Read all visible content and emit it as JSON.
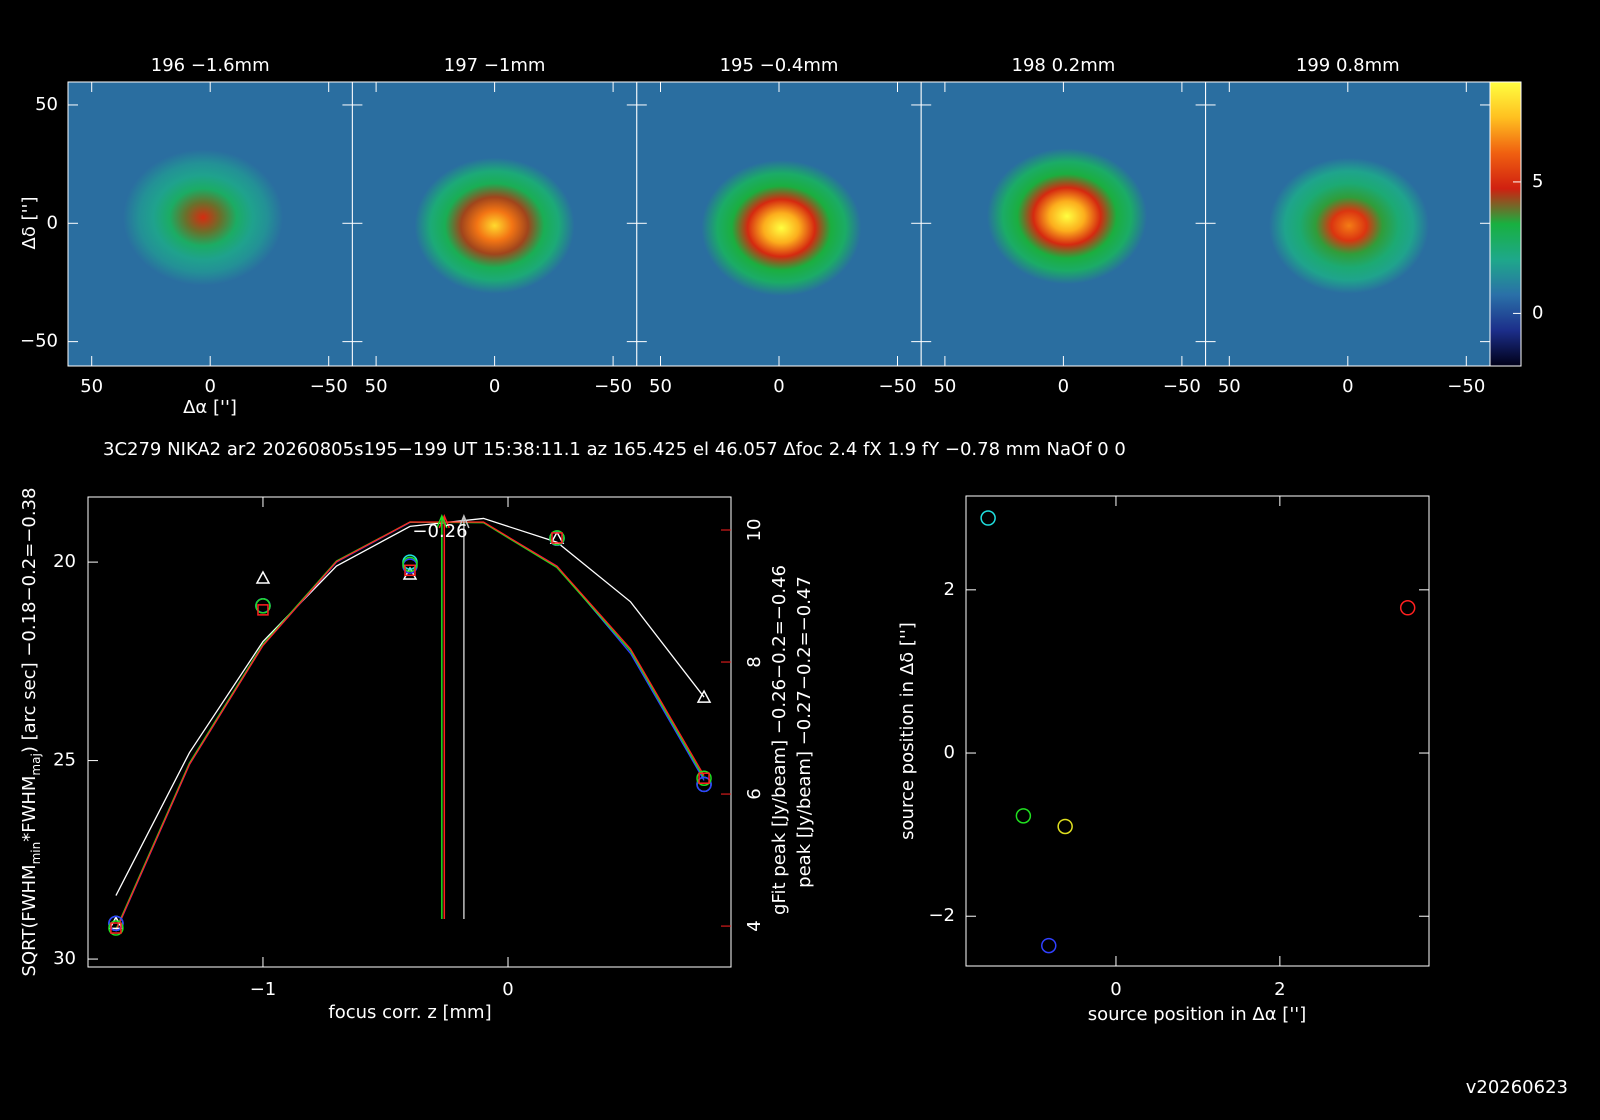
{
  "header": "3C279 NIKA2 ar2 20260805s195−199 UT 15:38:11.1 az 165.425 el 46.057 Δfoc 2.4 fX 1.9 fY −0.78 mm NaOf 0 0",
  "version": "v20260623",
  "chart_data": [
    {
      "type": "image",
      "xlabel": "Δα ['']",
      "ylabel": "Δδ ['']",
      "xlim": [
        60,
        -60
      ],
      "ylim": [
        -60.3,
        59.7
      ],
      "xticks": [
        50,
        0,
        {
          "value": -50,
          "label": "−50"
        }
      ],
      "yticks": [
        {
          "value": -50,
          "label": "−50"
        },
        0,
        50
      ],
      "colorbar": {
        "clim": [
          -2,
          8.8
        ],
        "ticks": [
          0,
          5
        ],
        "colormap": [
          "#000018",
          "#1c2e8a",
          "#2a70a8",
          "#1ea88a",
          "#18b040",
          "#d02010",
          "#f06010",
          "#ffc020",
          "#ffff40"
        ]
      },
      "panels": [
        {
          "title": "196 −1.6mm",
          "peak": 5,
          "x": 3,
          "y": 2.5
        },
        {
          "title": "197 −1mm",
          "peak": 8,
          "x": 0,
          "y": -1
        },
        {
          "title": "195 −0.4mm",
          "peak": 9,
          "x": -1,
          "y": -2
        },
        {
          "title": "198 0.2mm",
          "peak": 9,
          "x": -1.5,
          "y": 3
        },
        {
          "title": "199 0.8mm",
          "peak": 6.5,
          "x": -0.5,
          "y": -1
        }
      ]
    },
    {
      "type": "line",
      "xlabel": "focus corr. z [mm]",
      "ylabel": [
        "SQRT(FWHM",
        "min",
        "*FWHM",
        "maj",
        ") [arc sec] −0.18−0.2=−0.38"
      ],
      "y2label": "gFit peak [Jy/beam] −0.26−0.2=−0.46",
      "y3label": "peak [Jy/beam] −0.27−0.2=−0.47",
      "y2color": "#ff2020",
      "y3color": "#20e020",
      "xlim": [
        -1.714,
        0.91
      ],
      "ylim": [
        30.2,
        18.36
      ],
      "y2lim": [
        3.38,
        10.5
      ],
      "xticks": [
        {
          "value": -1,
          "label": "−1"
        },
        0
      ],
      "yticks": [
        20,
        25,
        30
      ],
      "y2ticks": [
        4,
        6,
        8,
        10
      ],
      "x": [
        -1.6,
        -1,
        -0.4,
        0.2,
        0.8
      ],
      "series": [
        {
          "color": "#ffffff",
          "marker": "triangle",
          "values": [
            29.1,
            20.4,
            20.3,
            19.4,
            23.4
          ]
        },
        {
          "color": "#20e0e0",
          "marker": "circle",
          "values": [
            29.1,
            21.1,
            20.0,
            19.4,
            25.6
          ]
        },
        {
          "color": "#3040ff",
          "marker": "circle",
          "values": [
            29.1,
            21.1,
            20.1,
            19.4,
            25.6
          ]
        },
        {
          "color": "#20e020",
          "marker": "circle",
          "axis": "y2",
          "values": [
            3.97,
            8.85,
            9.48,
            9.88,
            6.24
          ]
        },
        {
          "color": "#ff2020",
          "marker": "square",
          "axis": "y2",
          "values": [
            3.97,
            8.79,
            9.39,
            9.88,
            6.24
          ]
        }
      ],
      "fit_x": [
        -1.6,
        -1.3,
        -1.0,
        -0.7,
        -0.4,
        -0.1,
        0.2,
        0.5,
        0.8
      ],
      "fits": [
        {
          "color": "#ffffff",
          "values": [
            28.4,
            24.8,
            22.0,
            20.1,
            19.1,
            18.9,
            19.5,
            21.0,
            23.4
          ]
        },
        {
          "color": "#3040ff",
          "values": [
            29.3,
            25.1,
            22.1,
            20.0,
            19.0,
            19.0,
            20.1,
            22.3,
            25.5
          ]
        },
        {
          "color": "#20e020",
          "axis": "y2",
          "values": [
            3.95,
            6.47,
            8.27,
            9.53,
            10.12,
            10.11,
            9.43,
            8.17,
            6.24
          ]
        },
        {
          "color": "#ff2020",
          "axis": "y2",
          "values": [
            3.93,
            6.45,
            8.25,
            9.52,
            10.12,
            10.12,
            9.45,
            8.2,
            6.28
          ]
        }
      ],
      "focus_lines": [
        {
          "value": -0.18,
          "color": "#c0c0c0"
        },
        {
          "value": -0.26,
          "color": "#ff2020"
        },
        {
          "value": -0.27,
          "color": "#20e020"
        }
      ],
      "annotation": "−0.26",
      "annotation_color": "#20e020"
    },
    {
      "type": "scatter",
      "xlabel": "source position in Δα ['']",
      "ylabel": "source position in Δδ ['']",
      "xlim": [
        -1.83,
        3.82
      ],
      "ylim": [
        -2.61,
        3.15
      ],
      "xticks": [
        0,
        2
      ],
      "yticks": [
        {
          "value": -2,
          "label": "−2"
        },
        0,
        2
      ],
      "x": [
        -1.56,
        3.56,
        -1.13,
        -0.62,
        -0.82
      ],
      "y": [
        2.88,
        1.78,
        -0.77,
        -0.9,
        -2.36
      ],
      "colors": [
        "#20e0e0",
        "#ff2020",
        "#20e020",
        "#e0e020",
        "#3040ff"
      ]
    }
  ]
}
